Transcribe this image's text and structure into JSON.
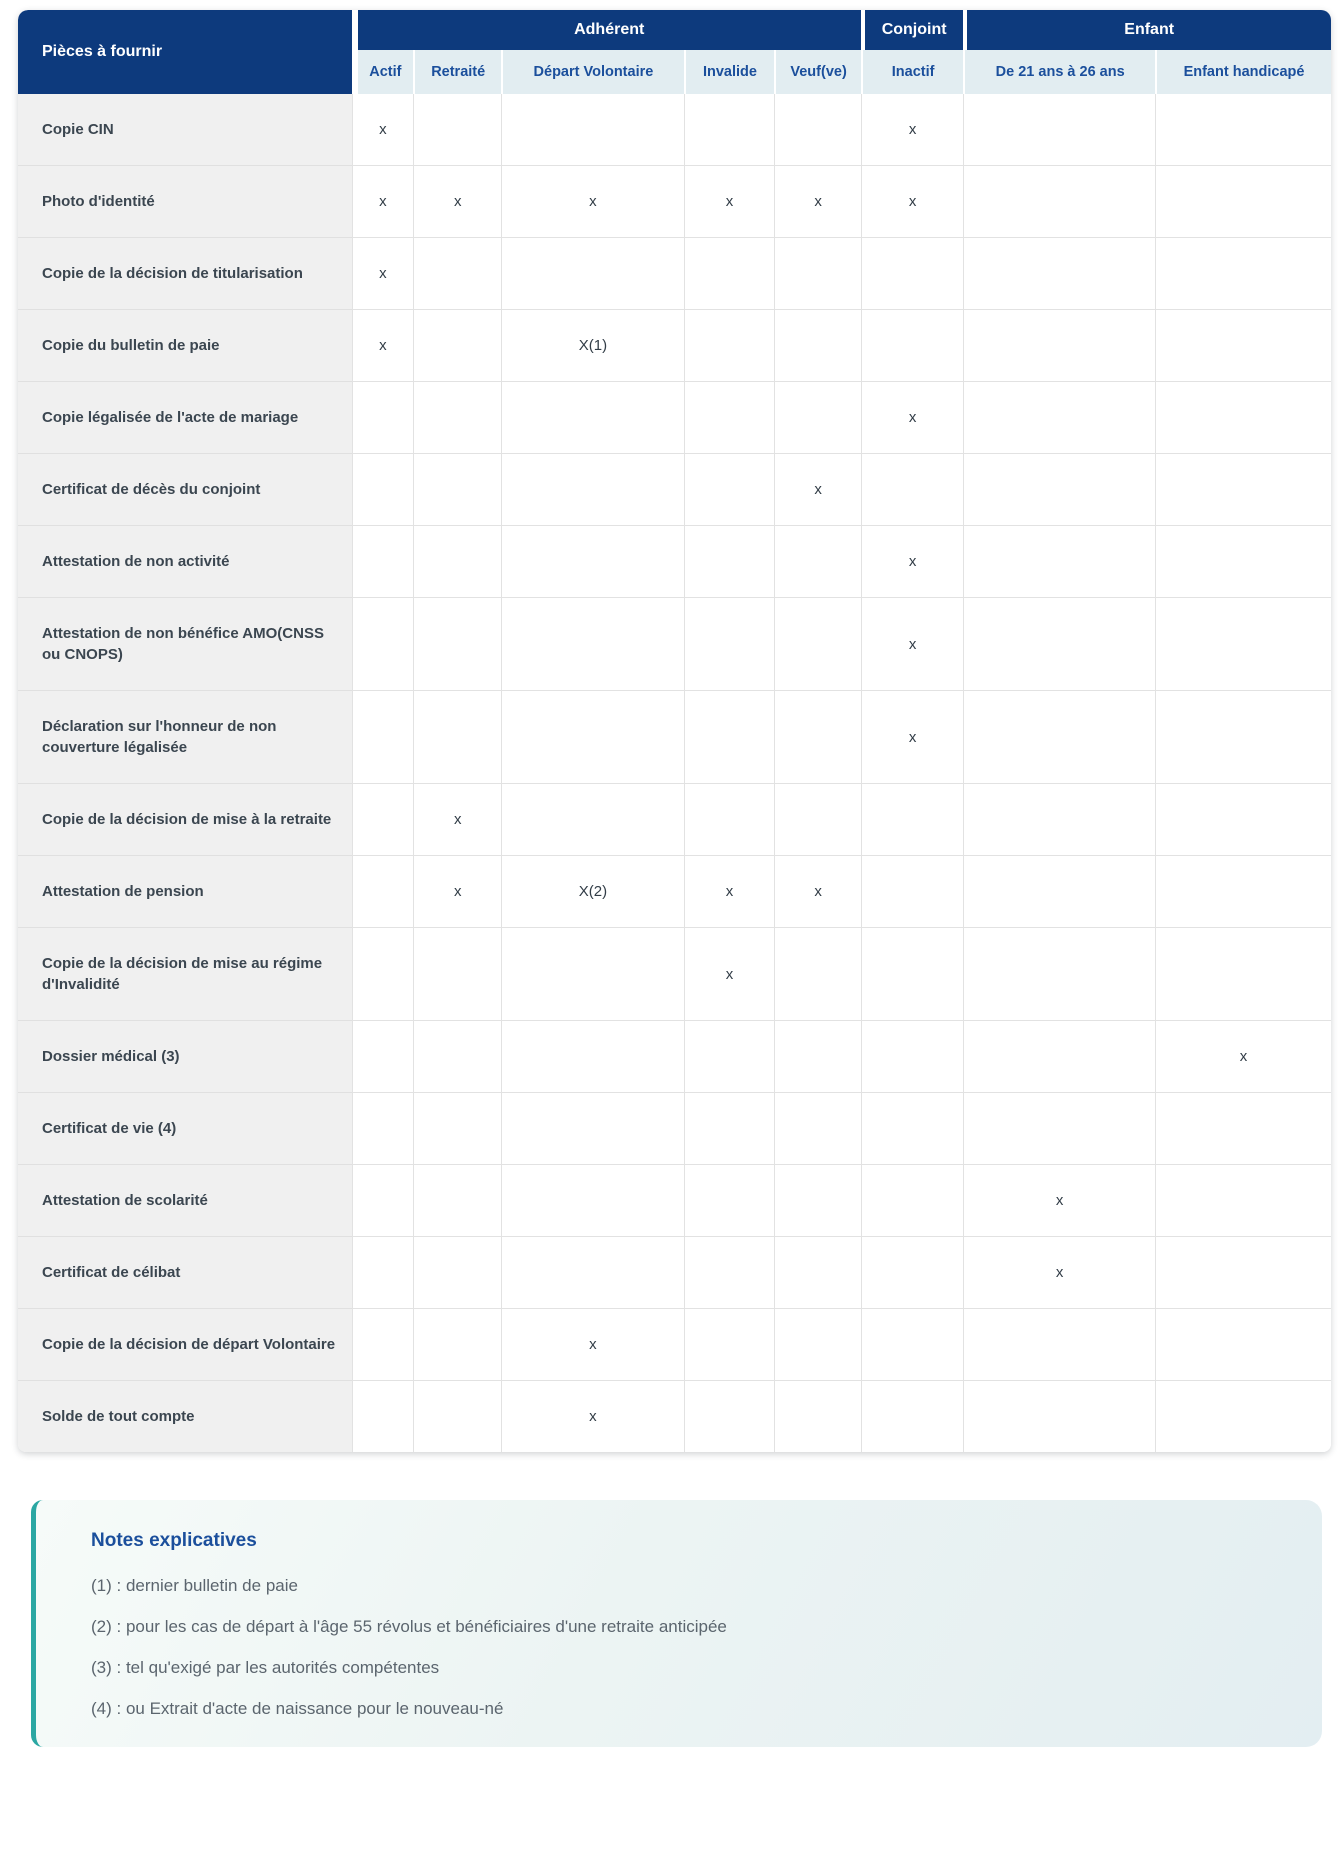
{
  "table": {
    "corner_label": "Pièces à fournir",
    "groups": [
      {
        "label": "Adhérent",
        "span": 5
      },
      {
        "label": "Conjoint",
        "span": 1
      },
      {
        "label": "Enfant",
        "span": 2
      }
    ],
    "columns": [
      "Actif",
      "Retraité",
      "Départ Volontaire",
      "Invalide",
      "Veuf(ve)",
      "Inactif",
      "De 21 ans à 26 ans",
      "Enfant handicapé"
    ],
    "rows": [
      {
        "label": "Copie CIN",
        "marks": [
          "x",
          "",
          "",
          "",
          "",
          "x",
          "",
          ""
        ]
      },
      {
        "label": "Photo d'identité",
        "marks": [
          "x",
          "x",
          "x",
          "x",
          "x",
          "x",
          "",
          ""
        ]
      },
      {
        "label": "Copie de la décision de titularisation",
        "marks": [
          "x",
          "",
          "",
          "",
          "",
          "",
          "",
          ""
        ]
      },
      {
        "label": "Copie du bulletin de paie",
        "marks": [
          "x",
          "",
          "X(1)",
          "",
          "",
          "",
          "",
          ""
        ]
      },
      {
        "label": "Copie légalisée de l'acte de mariage",
        "marks": [
          "",
          "",
          "",
          "",
          "",
          "x",
          "",
          ""
        ]
      },
      {
        "label": "Certificat de décès du conjoint",
        "marks": [
          "",
          "",
          "",
          "",
          "x",
          "",
          "",
          ""
        ]
      },
      {
        "label": "Attestation de non activité",
        "marks": [
          "",
          "",
          "",
          "",
          "",
          "x",
          "",
          ""
        ]
      },
      {
        "label": "Attestation de non bénéfice AMO(CNSS ou CNOPS)",
        "marks": [
          "",
          "",
          "",
          "",
          "",
          "x",
          "",
          ""
        ]
      },
      {
        "label": "Déclaration sur l'honneur de non couverture légalisée",
        "marks": [
          "",
          "",
          "",
          "",
          "",
          "x",
          "",
          ""
        ]
      },
      {
        "label": "Copie de la décision de mise à la retraite",
        "marks": [
          "",
          "x",
          "",
          "",
          "",
          "",
          "",
          ""
        ]
      },
      {
        "label": "Attestation de pension",
        "marks": [
          "",
          "x",
          "X(2)",
          "x",
          "x",
          "",
          "",
          ""
        ]
      },
      {
        "label": "Copie de la décision de mise au régime d'Invalidité",
        "marks": [
          "",
          "",
          "",
          "x",
          "",
          "",
          "",
          ""
        ]
      },
      {
        "label": "Dossier médical (3)",
        "marks": [
          "",
          "",
          "",
          "",
          "",
          "",
          "",
          "x"
        ]
      },
      {
        "label": "Certificat de vie (4)",
        "marks": [
          "",
          "",
          "",
          "",
          "",
          "",
          "",
          ""
        ]
      },
      {
        "label": "Attestation de scolarité",
        "marks": [
          "",
          "",
          "",
          "",
          "",
          "",
          "x",
          ""
        ]
      },
      {
        "label": "Certificat de célibat",
        "marks": [
          "",
          "",
          "",
          "",
          "",
          "",
          "x",
          ""
        ]
      },
      {
        "label": "Copie de la décision de départ Volontaire",
        "marks": [
          "",
          "",
          "x",
          "",
          "",
          "",
          "",
          ""
        ]
      },
      {
        "label": "Solde de tout compte",
        "marks": [
          "",
          "",
          "x",
          "",
          "",
          "",
          "",
          ""
        ]
      }
    ]
  },
  "notes": {
    "title": "Notes explicatives",
    "items": [
      "(1) : dernier bulletin de paie",
      "(2) : pour les cas de départ à l'âge 55 révolus et bénéficiaires d'une retraite anticipée",
      "(3) : tel qu'exigé par les autorités compétentes",
      "(4) : ou Extrait d'acte de naissance pour le nouveau-né"
    ]
  },
  "theme": {
    "navy": "#0d3a7d",
    "subheader_bg": "#e2edf1",
    "subheader_text": "#1b4f9c",
    "label_bg": "#f0f0f0",
    "label_text": "#3b4650",
    "mark_text": "#323d47",
    "border": "#e2e2e2",
    "notes_accent": "#2ba7a3",
    "notes_title": "#1b4f9c",
    "notes_text": "#5b656e",
    "notes_bg_start": "#f6fbf9",
    "notes_bg_end": "#e3eef2"
  }
}
